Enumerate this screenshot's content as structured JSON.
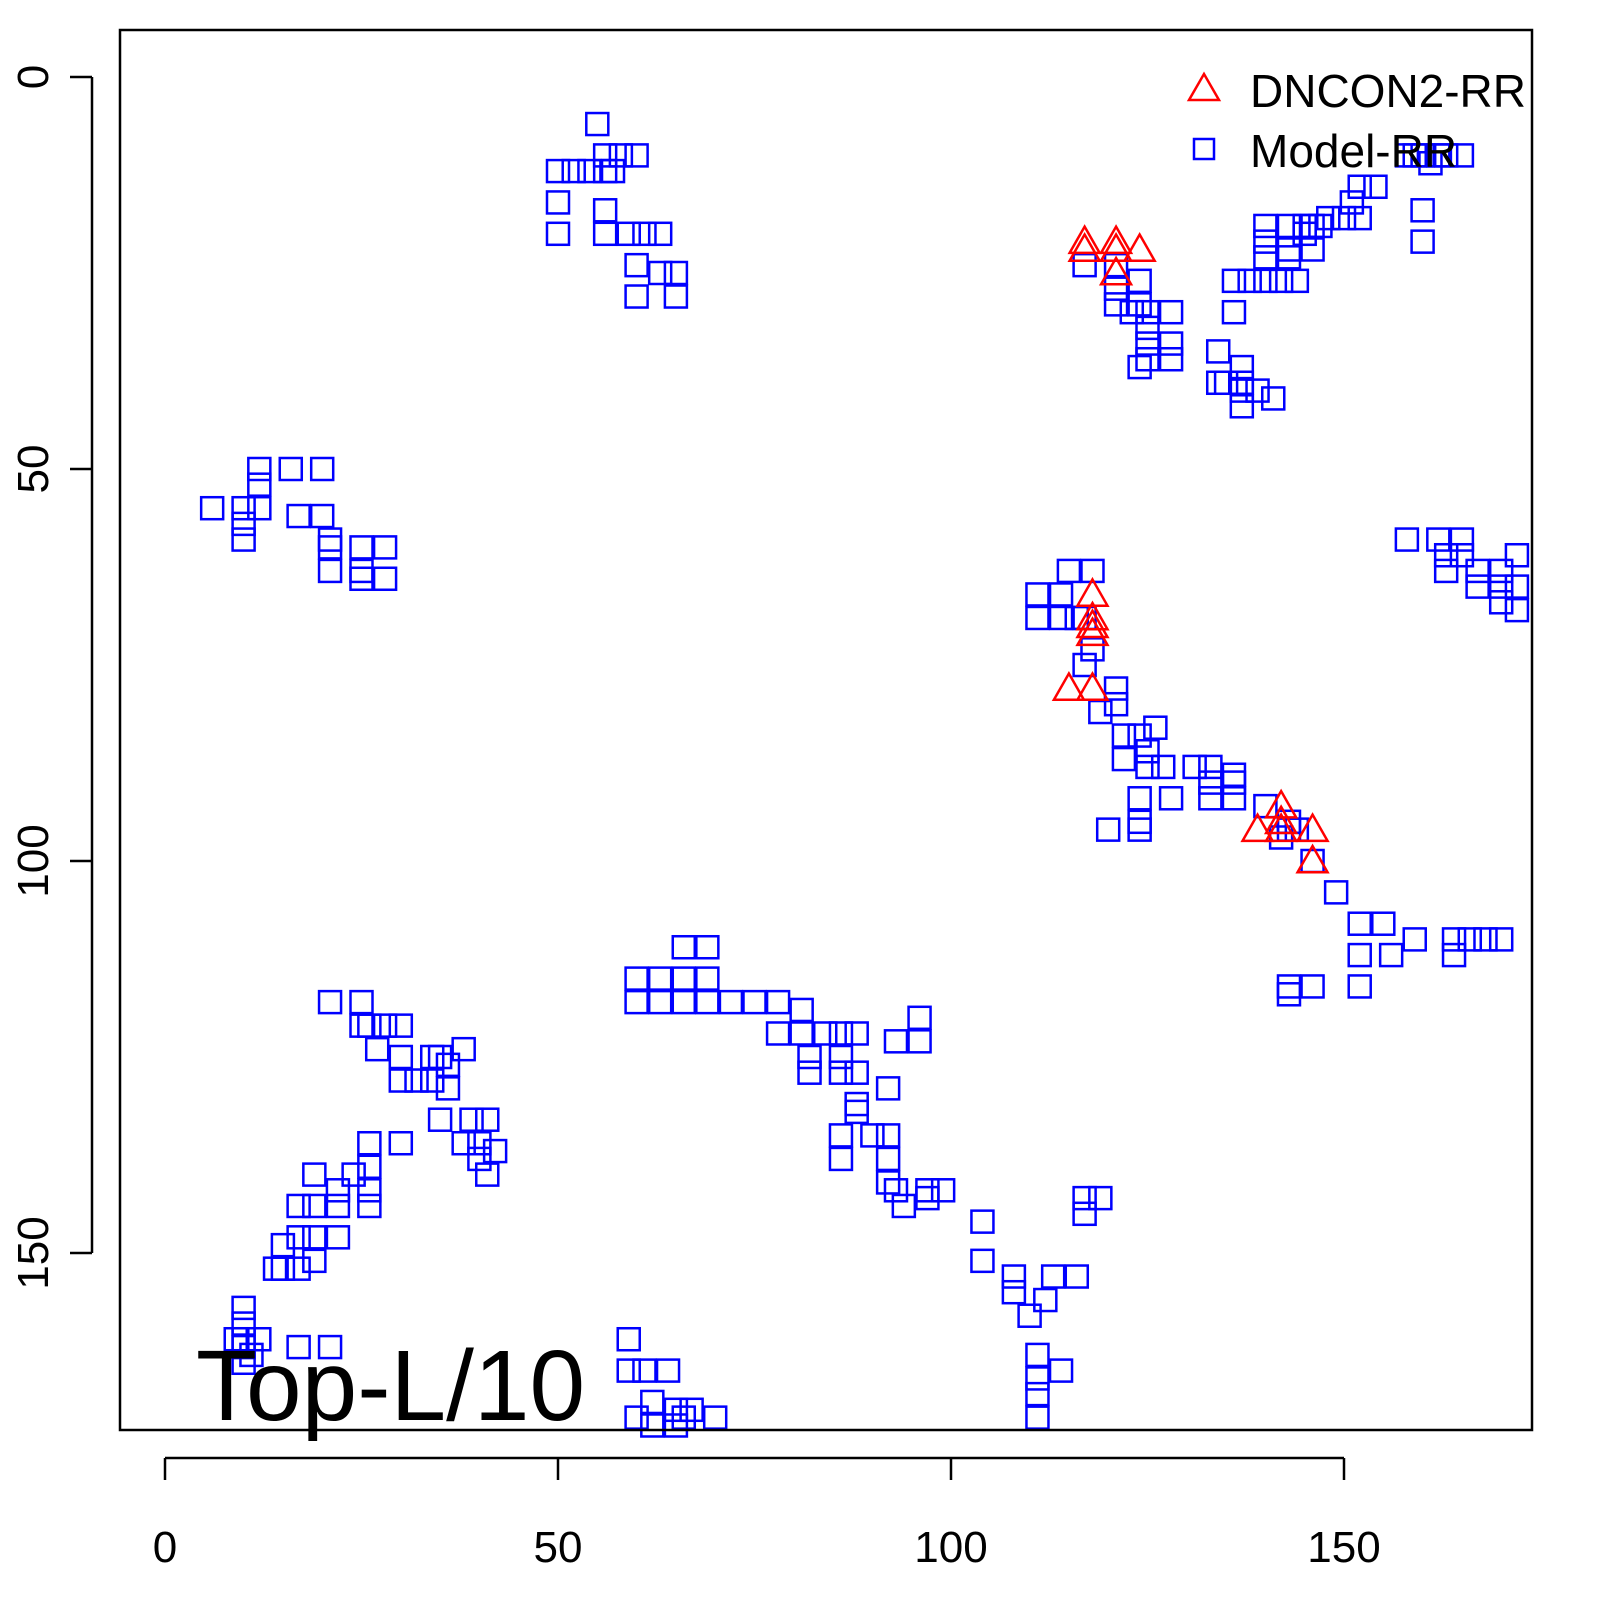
{
  "chart_data": {
    "type": "scatter",
    "xlim": [
      -6,
      180
    ],
    "ylim": [
      -6,
      179
    ],
    "y_reversed": true,
    "x_ticks": [
      0,
      50,
      100,
      150
    ],
    "y_ticks": [
      0,
      50,
      100,
      150
    ],
    "grid": false,
    "legend_position": "top-right",
    "annotation": "Top-L/10",
    "series": [
      {
        "name": "DNCON2-RR",
        "marker": "triangle",
        "color": "#ff0000",
        "points": [
          [
            117,
            21
          ],
          [
            117,
            22
          ],
          [
            121,
            21
          ],
          [
            121,
            22
          ],
          [
            124,
            22
          ],
          [
            121,
            25
          ],
          [
            118,
            66
          ],
          [
            118,
            69
          ],
          [
            118,
            70
          ],
          [
            118,
            71
          ],
          [
            115,
            78
          ],
          [
            118,
            78
          ],
          [
            139,
            96
          ],
          [
            142,
            93
          ],
          [
            142,
            95
          ],
          [
            142,
            96
          ],
          [
            146,
            96
          ],
          [
            146,
            100
          ]
        ]
      },
      {
        "name": "Model-RR",
        "marker": "square",
        "color": "#0000ff",
        "points": [
          [
            55,
            6
          ],
          [
            56,
            10
          ],
          [
            58,
            10
          ],
          [
            60,
            10
          ],
          [
            50,
            12
          ],
          [
            52,
            12
          ],
          [
            54,
            12
          ],
          [
            56,
            12
          ],
          [
            57,
            12
          ],
          [
            50,
            16
          ],
          [
            56,
            17
          ],
          [
            50,
            20
          ],
          [
            56,
            20
          ],
          [
            59,
            20
          ],
          [
            61,
            20
          ],
          [
            63,
            20
          ],
          [
            60,
            24
          ],
          [
            63,
            25
          ],
          [
            65,
            25
          ],
          [
            60,
            28
          ],
          [
            65,
            28
          ],
          [
            117,
            24
          ],
          [
            121,
            24
          ],
          [
            124,
            26
          ],
          [
            121,
            27
          ],
          [
            124,
            29
          ],
          [
            121,
            29
          ],
          [
            123,
            30
          ],
          [
            125,
            30
          ],
          [
            128,
            30
          ],
          [
            125,
            32
          ],
          [
            125,
            34
          ],
          [
            128,
            34
          ],
          [
            125,
            36
          ],
          [
            128,
            36
          ],
          [
            124,
            37
          ],
          [
            154,
            14
          ],
          [
            152,
            14
          ],
          [
            151,
            16
          ],
          [
            148,
            18
          ],
          [
            150,
            18
          ],
          [
            152,
            18
          ],
          [
            145,
            19
          ],
          [
            146,
            19
          ],
          [
            147,
            19
          ],
          [
            140,
            19
          ],
          [
            143,
            19
          ],
          [
            145,
            20
          ],
          [
            140,
            21
          ],
          [
            143,
            22
          ],
          [
            146,
            22
          ],
          [
            140,
            23
          ],
          [
            143,
            23
          ],
          [
            140,
            26
          ],
          [
            142,
            26
          ],
          [
            138,
            26
          ],
          [
            136,
            26
          ],
          [
            144,
            26
          ],
          [
            136,
            30
          ],
          [
            134,
            35
          ],
          [
            137,
            37
          ],
          [
            134,
            39
          ],
          [
            135,
            39
          ],
          [
            137,
            39
          ],
          [
            139,
            40
          ],
          [
            137,
            40
          ],
          [
            141,
            41
          ],
          [
            137,
            42
          ],
          [
            158,
            10
          ],
          [
            159,
            10
          ],
          [
            160,
            10
          ],
          [
            162,
            10
          ],
          [
            161,
            11
          ],
          [
            163,
            10
          ],
          [
            165,
            10
          ],
          [
            160,
            17
          ],
          [
            160,
            21
          ],
          [
            6,
            55
          ],
          [
            10,
            55
          ],
          [
            12,
            55
          ],
          [
            12,
            52
          ],
          [
            12,
            50
          ],
          [
            16,
            50
          ],
          [
            20,
            50
          ],
          [
            10,
            57
          ],
          [
            10,
            59
          ],
          [
            17,
            56
          ],
          [
            20,
            56
          ],
          [
            21,
            59
          ],
          [
            21,
            60
          ],
          [
            21,
            63
          ],
          [
            25,
            60
          ],
          [
            28,
            60
          ],
          [
            25,
            63
          ],
          [
            25,
            64
          ],
          [
            28,
            64
          ],
          [
            115,
            63
          ],
          [
            118,
            63
          ],
          [
            111,
            66
          ],
          [
            114,
            66
          ],
          [
            111,
            69
          ],
          [
            114,
            69
          ],
          [
            116,
            69
          ],
          [
            117,
            69
          ],
          [
            118,
            73
          ],
          [
            117,
            75
          ],
          [
            121,
            78
          ],
          [
            121,
            80
          ],
          [
            119,
            81
          ],
          [
            122,
            84
          ],
          [
            124,
            84
          ],
          [
            126,
            83
          ],
          [
            122,
            87
          ],
          [
            125,
            86
          ],
          [
            125,
            88
          ],
          [
            127,
            88
          ],
          [
            131,
            88
          ],
          [
            133,
            88
          ],
          [
            136,
            89
          ],
          [
            133,
            90
          ],
          [
            136,
            90
          ],
          [
            133,
            92
          ],
          [
            136,
            92
          ],
          [
            140,
            93
          ],
          [
            143,
            95
          ],
          [
            143,
            96
          ],
          [
            142,
            97
          ],
          [
            144,
            96
          ],
          [
            124,
            92
          ],
          [
            128,
            92
          ],
          [
            124,
            95
          ],
          [
            120,
            96
          ],
          [
            124,
            96
          ],
          [
            146,
            100
          ],
          [
            149,
            104
          ],
          [
            152,
            108
          ],
          [
            155,
            108
          ],
          [
            152,
            112
          ],
          [
            156,
            112
          ],
          [
            159,
            110
          ],
          [
            164,
            110
          ],
          [
            166,
            110
          ],
          [
            168,
            110
          ],
          [
            170,
            110
          ],
          [
            164,
            112
          ],
          [
            143,
            116
          ],
          [
            146,
            116
          ],
          [
            152,
            116
          ],
          [
            143,
            117
          ],
          [
            158,
            59
          ],
          [
            162,
            59
          ],
          [
            165,
            59
          ],
          [
            163,
            61
          ],
          [
            165,
            61
          ],
          [
            167,
            63
          ],
          [
            170,
            63
          ],
          [
            172,
            61
          ],
          [
            163,
            63
          ],
          [
            167,
            65
          ],
          [
            170,
            65
          ],
          [
            172,
            65
          ],
          [
            170,
            67
          ],
          [
            172,
            68
          ],
          [
            60,
            115
          ],
          [
            63,
            115
          ],
          [
            66,
            115
          ],
          [
            66,
            111
          ],
          [
            69,
            111
          ],
          [
            69,
            115
          ],
          [
            63,
            118
          ],
          [
            60,
            118
          ],
          [
            66,
            118
          ],
          [
            69,
            118
          ],
          [
            72,
            118
          ],
          [
            75,
            118
          ],
          [
            78,
            118
          ],
          [
            81,
            119
          ],
          [
            78,
            122
          ],
          [
            81,
            122
          ],
          [
            84,
            122
          ],
          [
            86,
            122
          ],
          [
            88,
            122
          ],
          [
            82,
            125
          ],
          [
            86,
            125
          ],
          [
            82,
            127
          ],
          [
            86,
            127
          ],
          [
            88,
            127
          ],
          [
            88,
            131
          ],
          [
            92,
            129
          ],
          [
            93,
            123
          ],
          [
            96,
            123
          ],
          [
            96,
            120
          ],
          [
            88,
            132
          ],
          [
            90,
            135
          ],
          [
            86,
            135
          ],
          [
            92,
            135
          ],
          [
            86,
            138
          ],
          [
            92,
            138
          ],
          [
            92,
            141
          ],
          [
            93,
            142
          ],
          [
            97,
            142
          ],
          [
            97,
            143
          ],
          [
            99,
            142
          ],
          [
            94,
            144
          ],
          [
            104,
            146
          ],
          [
            104,
            151
          ],
          [
            108,
            153
          ],
          [
            108,
            155
          ],
          [
            113,
            153
          ],
          [
            116,
            153
          ],
          [
            112,
            156
          ],
          [
            110,
            158
          ],
          [
            21,
            118
          ],
          [
            25,
            118
          ],
          [
            25,
            121
          ],
          [
            26,
            121
          ],
          [
            27,
            124
          ],
          [
            28,
            121
          ],
          [
            30,
            121
          ],
          [
            30,
            125
          ],
          [
            34,
            125
          ],
          [
            35,
            125
          ],
          [
            36,
            126
          ],
          [
            34,
            128
          ],
          [
            38,
            124
          ],
          [
            30,
            128
          ],
          [
            32,
            128
          ],
          [
            36,
            129
          ],
          [
            35,
            133
          ],
          [
            39,
            133
          ],
          [
            41,
            133
          ],
          [
            38,
            136
          ],
          [
            40,
            136
          ],
          [
            42,
            137
          ],
          [
            40,
            138
          ],
          [
            41,
            140
          ],
          [
            30,
            136
          ],
          [
            26,
            136
          ],
          [
            26,
            139
          ],
          [
            26,
            142
          ],
          [
            26,
            144
          ],
          [
            24,
            140
          ],
          [
            22,
            142
          ],
          [
            19,
            140
          ],
          [
            22,
            144
          ],
          [
            22,
            148
          ],
          [
            17,
            144
          ],
          [
            19,
            144
          ],
          [
            17,
            148
          ],
          [
            19,
            148
          ],
          [
            19,
            151
          ],
          [
            15,
            152
          ],
          [
            17,
            152
          ],
          [
            14,
            152
          ],
          [
            15,
            149
          ],
          [
            17,
            162
          ],
          [
            21,
            162
          ],
          [
            10,
            157
          ],
          [
            10,
            159
          ],
          [
            10,
            161
          ],
          [
            10,
            162
          ],
          [
            10,
            164
          ],
          [
            11,
            163
          ],
          [
            12,
            161
          ],
          [
            9,
            161
          ],
          [
            59,
            161
          ],
          [
            59,
            165
          ],
          [
            61,
            165
          ],
          [
            64,
            165
          ],
          [
            62,
            169
          ],
          [
            65,
            170
          ],
          [
            67,
            170
          ],
          [
            66,
            171
          ],
          [
            70,
            171
          ],
          [
            60,
            171
          ],
          [
            62,
            172
          ],
          [
            65,
            172
          ],
          [
            117,
            143
          ],
          [
            119,
            143
          ],
          [
            117,
            145
          ],
          [
            111,
            163
          ],
          [
            111,
            166
          ],
          [
            111,
            168
          ],
          [
            111,
            171
          ],
          [
            114,
            165
          ]
        ]
      }
    ]
  }
}
